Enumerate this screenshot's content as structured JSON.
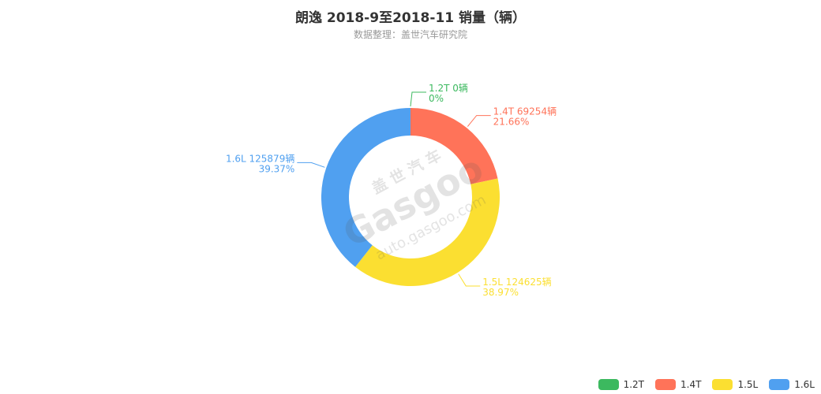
{
  "header": {
    "title": "朗逸 2018-9至2018-11 销量（辆）",
    "subtitle": "数据整理：盖世汽车研究院"
  },
  "watermark": {
    "brand_cn": "盖 世 汽 车",
    "brand_en": "Gasgoo",
    "url": "auto.gasgoo.com"
  },
  "chart_data": {
    "type": "pie",
    "variant": "donut",
    "title": "朗逸 2018-9至2018-11 销量（辆）",
    "subtitle": "数据整理：盖世汽车研究院",
    "unit": "辆",
    "legend_position": "bottom-right",
    "slices": [
      {
        "name": "1.2T",
        "value": 0,
        "percent_label": "0%",
        "color": "#3cb95f",
        "label_line1": "1.2T 0辆"
      },
      {
        "name": "1.4T",
        "value": 69254,
        "percent_label": "21.66%",
        "color": "#ff7359",
        "label_line1": "1.4T 69254辆"
      },
      {
        "name": "1.5L",
        "value": 124625,
        "percent_label": "38.97%",
        "color": "#fbdf31",
        "label_line1": "1.5L 124625辆"
      },
      {
        "name": "1.6L",
        "value": 125879,
        "percent_label": "39.37%",
        "color": "#50a0f0",
        "label_line1": "1.6L 125879辆"
      }
    ]
  }
}
